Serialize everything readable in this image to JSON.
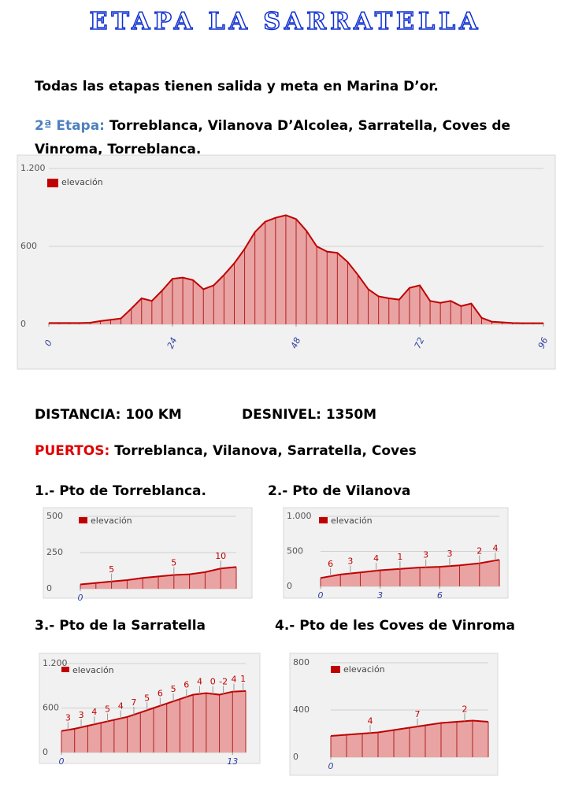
{
  "title": "ETAPA  LA SARRATELLA",
  "intro": "Todas las etapas tienen salida y meta en Marina D’or.",
  "stage_label": "2ª Etapa:",
  "stage_route": "Torreblanca, Vilanova D’Alcolea, Sarratella, Coves de Vinroma, Torreblanca.",
  "distance": "DISTANCIA: 100 KM",
  "elevation_gain": "DESNIVEL: 1350M",
  "passes_label": "PUERTOS:",
  "passes": "Torreblanca, Vilanova,  Sarratella, Coves",
  "chart_data": [
    {
      "type": "area",
      "x": [
        0,
        2,
        4,
        6,
        8,
        10,
        12,
        14,
        16,
        18,
        20,
        22,
        24,
        26,
        28,
        30,
        32,
        34,
        36,
        38,
        40,
        42,
        44,
        46,
        48,
        50,
        52,
        54,
        56,
        58,
        60,
        62,
        64,
        66,
        68,
        70,
        72,
        74,
        76,
        78,
        80,
        82,
        84,
        86,
        88,
        90,
        92,
        94,
        96
      ],
      "series": [
        {
          "name": "elevación",
          "color": "#c00000",
          "area_color": "#e9a3a3",
          "values": [
            10,
            10,
            10,
            10,
            12,
            25,
            35,
            45,
            120,
            200,
            180,
            260,
            350,
            360,
            340,
            270,
            300,
            380,
            470,
            580,
            710,
            790,
            820,
            840,
            810,
            720,
            600,
            560,
            550,
            480,
            380,
            270,
            215,
            200,
            190,
            280,
            300,
            180,
            165,
            180,
            140,
            160,
            50,
            20,
            15,
            10,
            8,
            8,
            8
          ]
        }
      ],
      "xlim": [
        0,
        96
      ],
      "xticks": [
        0,
        24,
        48,
        72,
        96
      ],
      "ylim": [
        0,
        1200
      ],
      "yticks": [
        0,
        600,
        {
          "value": 1200,
          "label": "1.200"
        }
      ],
      "grid": true
    },
    {
      "type": "area",
      "title": "1.- Pto de Torreblanca.",
      "x": [
        0,
        1,
        2,
        3,
        4,
        5,
        6,
        7,
        8,
        9,
        10
      ],
      "series": [
        {
          "name": "elevación",
          "color": "#c00000",
          "area_color": "#e9a3a3",
          "values": [
            30,
            40,
            50,
            60,
            75,
            85,
            95,
            100,
            115,
            140,
            150
          ]
        }
      ],
      "annotations": [
        {
          "x": 2,
          "text": "5"
        },
        {
          "x": 6,
          "text": "5"
        },
        {
          "x": 9,
          "text": "10"
        }
      ],
      "xlim": [
        0,
        10
      ],
      "xticks": [
        0
      ],
      "ylim": [
        0,
        500
      ],
      "yticks": [
        0,
        250,
        500
      ],
      "grid": true
    },
    {
      "type": "area",
      "title": "2.- Pto de Vilanova",
      "x": [
        0,
        1,
        2,
        3,
        4,
        5,
        6,
        7,
        8,
        9
      ],
      "series": [
        {
          "name": "elevación",
          "color": "#c00000",
          "area_color": "#e9a3a3",
          "values": [
            120,
            170,
            200,
            230,
            250,
            270,
            280,
            300,
            330,
            380
          ]
        }
      ],
      "annotations": [
        {
          "x": 0.5,
          "text": "6"
        },
        {
          "x": 1.5,
          "text": "3"
        },
        {
          "x": 2.8,
          "text": "4"
        },
        {
          "x": 4,
          "text": "1"
        },
        {
          "x": 5.3,
          "text": "3"
        },
        {
          "x": 6.5,
          "text": "3"
        },
        {
          "x": 8,
          "text": "2"
        },
        {
          "x": 8.8,
          "text": "4"
        }
      ],
      "xlim": [
        0,
        9
      ],
      "xticks": [
        0,
        3,
        6
      ],
      "ylim": [
        0,
        1000
      ],
      "yticks": [
        0,
        500,
        {
          "value": 1000,
          "label": "1.000"
        }
      ],
      "grid": true
    },
    {
      "type": "area",
      "title": "3.- Pto de la Sarratella",
      "x": [
        0,
        1,
        2,
        3,
        4,
        5,
        6,
        7,
        8,
        9,
        10,
        11,
        12,
        13,
        14
      ],
      "series": [
        {
          "name": "elevación",
          "color": "#c00000",
          "area_color": "#e9a3a3",
          "values": [
            290,
            320,
            360,
            400,
            440,
            480,
            540,
            600,
            660,
            720,
            780,
            800,
            780,
            820,
            830
          ]
        }
      ],
      "annotations": [
        {
          "x": 0.5,
          "text": "3"
        },
        {
          "x": 1.5,
          "text": "3"
        },
        {
          "x": 2.5,
          "text": "4"
        },
        {
          "x": 3.5,
          "text": "5"
        },
        {
          "x": 4.5,
          "text": "4"
        },
        {
          "x": 5.5,
          "text": "7"
        },
        {
          "x": 6.5,
          "text": "5"
        },
        {
          "x": 7.5,
          "text": "6"
        },
        {
          "x": 8.5,
          "text": "5"
        },
        {
          "x": 9.5,
          "text": "6"
        },
        {
          "x": 10.5,
          "text": "4"
        },
        {
          "x": 11.5,
          "text": "0"
        },
        {
          "x": 12.3,
          "text": "-2"
        },
        {
          "x": 13.1,
          "text": "4"
        },
        {
          "x": 13.8,
          "text": "1"
        }
      ],
      "xlim": [
        0,
        14
      ],
      "xticks": [
        0,
        13
      ],
      "ylim": [
        0,
        1200
      ],
      "yticks": [
        0,
        600,
        {
          "value": 1200,
          "label": "1.200"
        }
      ],
      "grid": true
    },
    {
      "type": "area",
      "title": "4.- Pto de les Coves de Vinroma",
      "x": [
        0,
        1,
        2,
        3,
        4,
        5,
        6,
        7,
        8,
        9,
        10
      ],
      "series": [
        {
          "name": "elevación",
          "color": "#c00000",
          "area_color": "#e9a3a3",
          "values": [
            180,
            190,
            200,
            210,
            230,
            250,
            270,
            290,
            300,
            310,
            300
          ]
        }
      ],
      "annotations": [
        {
          "x": 2.5,
          "text": "4"
        },
        {
          "x": 5.5,
          "text": "7"
        },
        {
          "x": 8.5,
          "text": "2"
        }
      ],
      "xlim": [
        0,
        10
      ],
      "xticks": [
        0
      ],
      "ylim": [
        0,
        800
      ],
      "yticks": [
        0,
        400,
        800
      ],
      "grid": true
    }
  ]
}
